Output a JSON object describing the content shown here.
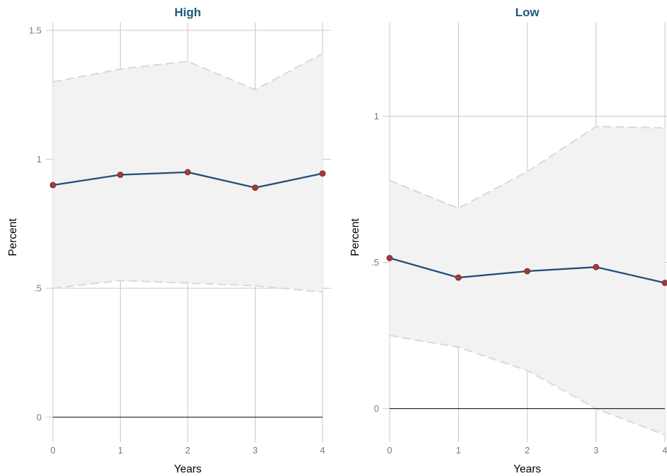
{
  "chart_data": [
    {
      "type": "line",
      "title": "High",
      "xlabel": "Years",
      "ylabel": "Percent",
      "x": [
        0,
        1,
        2,
        3,
        4
      ],
      "x_tick_labels": [
        "0",
        "1",
        "2",
        "3",
        "4"
      ],
      "ylim": [
        -0.08,
        1.53
      ],
      "y_ticks": [
        0,
        0.5,
        1,
        1.5
      ],
      "y_tick_labels": [
        "0",
        ".5",
        "1",
        "1.5"
      ],
      "series": [
        {
          "values": [
            0.9,
            0.94,
            0.95,
            0.89,
            0.945
          ]
        }
      ],
      "ci_upper": [
        1.3,
        1.35,
        1.38,
        1.27,
        1.41
      ],
      "ci_lower": [
        0.5,
        0.53,
        0.52,
        0.51,
        0.485
      ],
      "grid": true,
      "reference_line_y": 0,
      "colors": {
        "title": "#1a5a7a",
        "line": "#1f4e79",
        "marker": "#a43a3a",
        "band": "#f2f2f2",
        "bound": "#d9d9d9",
        "grid": "#c8c8c8"
      }
    },
    {
      "type": "line",
      "title": "Low",
      "xlabel": "Years",
      "ylabel": "Percent",
      "x": [
        0,
        1,
        2,
        3,
        4
      ],
      "x_tick_labels": [
        "0",
        "1",
        "2",
        "3",
        "4"
      ],
      "ylim": [
        -0.1,
        1.32
      ],
      "y_ticks": [
        0,
        0.5,
        1
      ],
      "y_tick_labels": [
        "0",
        ".5",
        "1"
      ],
      "series": [
        {
          "values": [
            0.515,
            0.448,
            0.47,
            0.484,
            0.43
          ]
        }
      ],
      "ci_upper": [
        0.78,
        0.685,
        0.81,
        0.965,
        0.96
      ],
      "ci_lower": [
        0.25,
        0.21,
        0.13,
        0.0,
        -0.09
      ],
      "grid": true,
      "reference_line_y": 0,
      "colors": {
        "title": "#1a5a7a",
        "line": "#1f4e79",
        "marker": "#a43a3a",
        "band": "#f2f2f2",
        "bound": "#d9d9d9",
        "grid": "#c8c8c8"
      }
    }
  ]
}
